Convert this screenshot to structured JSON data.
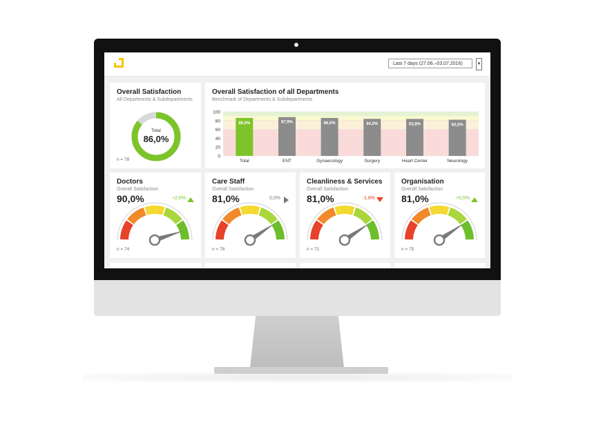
{
  "header": {
    "date_range": "Last 7 days (27.06.–03.07.2016)",
    "dropdown_icon": "caret-down-icon"
  },
  "overall": {
    "title": "Overall Satisfaction",
    "subtitle": "All Departments & Subdepartments",
    "center_label": "Total",
    "value_text": "86,0%",
    "value": 86.0,
    "n": "n = 78",
    "colors": {
      "fill": "#7dc42a",
      "track": "#d9d9d9"
    }
  },
  "departments": {
    "title": "Overall Satisfaction of all Departments",
    "subtitle": "Benchmark of Departments & Subdepartments"
  },
  "chart_data": {
    "type": "bar",
    "title": "Overall Satisfaction of all Departments",
    "subtitle": "Benchmark of Departments & Subdepartments",
    "categories": [
      "Total",
      "ENT",
      "Gynaecology",
      "Surgery",
      "Heart Center",
      "Neurology"
    ],
    "values": [
      86.0,
      87.9,
      86.0,
      84.0,
      83.8,
      82.0
    ],
    "value_labels": [
      "86,0%",
      "87,9%",
      "86,0%",
      "84,0%",
      "83,8%",
      "82,0%"
    ],
    "ylim": [
      0,
      100
    ],
    "yticks": [
      "0",
      "20",
      "40",
      "60",
      "80",
      "100"
    ],
    "grid": true,
    "colors": {
      "highlight": "#7dc42a",
      "bar": "#8c8c8c"
    },
    "background_bands": [
      {
        "from": 0,
        "to": 60,
        "color": "#fbdada"
      },
      {
        "from": 60,
        "to": 80,
        "color": "#fdf0d8"
      },
      {
        "from": 80,
        "to": 90,
        "color": "#fbf9d0"
      },
      {
        "from": 90,
        "to": 100,
        "color": "#e4f3d2"
      }
    ]
  },
  "gauges": [
    {
      "title": "Doctors",
      "subtitle": "Overall Satisfaction",
      "value_text": "90,0%",
      "value": 90.0,
      "change": "+2,6%",
      "trend": "up",
      "n": "n = 74"
    },
    {
      "title": "Care Staff",
      "subtitle": "Overall Satisfaction",
      "value_text": "81,0%",
      "value": 81.0,
      "change": "0,0%",
      "trend": "right",
      "n": "n = 78"
    },
    {
      "title": "Cleanliness & Services",
      "subtitle": "Overall Satisfaction",
      "value_text": "81,0%",
      "value": 81.0,
      "change": "-1,8%",
      "trend": "down",
      "n": "n = 71"
    },
    {
      "title": "Organisation",
      "subtitle": "Overall Satisfaction",
      "value_text": "81,0%",
      "value": 81.0,
      "change": "+0,5%",
      "trend": "up",
      "n": "n = 75"
    }
  ],
  "gauge_segment_colors": [
    "#e8422a",
    "#f08a2a",
    "#f5d830",
    "#a8d63c",
    "#6cbf2a"
  ],
  "trend_colors": {
    "up": "#7dc42a",
    "down": "#e8422a",
    "right": "#777777"
  }
}
